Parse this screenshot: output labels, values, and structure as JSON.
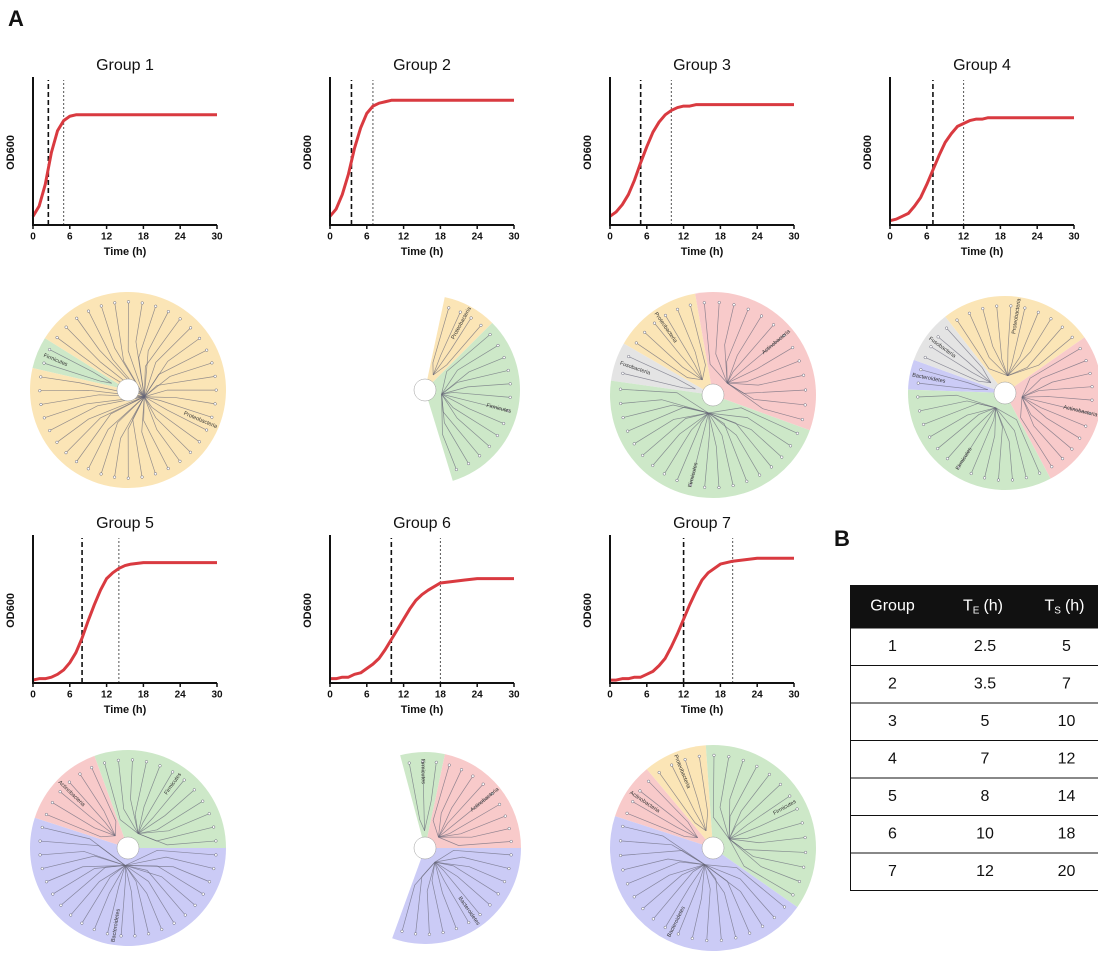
{
  "panel_labels": [
    "A",
    "B"
  ],
  "chart_data": [
    {
      "type": "line",
      "title": "Group 1",
      "y_label": "OD600",
      "x_label": "Time (h)",
      "xlim": [
        0,
        30
      ],
      "xticks": [
        0,
        6,
        12,
        18,
        24,
        30
      ],
      "ylim": [
        0,
        1
      ],
      "x": [
        0,
        1,
        2,
        3,
        4,
        5,
        6,
        7,
        8,
        9,
        10,
        11,
        12,
        13,
        14,
        15,
        16,
        18,
        20,
        22,
        24,
        26,
        28,
        30
      ],
      "series": [
        {
          "color": "#d93a40",
          "values": [
            0.06,
            0.13,
            0.28,
            0.5,
            0.65,
            0.72,
            0.75,
            0.76,
            0.76,
            0.76,
            0.76,
            0.76,
            0.76,
            0.76,
            0.76,
            0.76,
            0.76,
            0.76,
            0.76,
            0.76,
            0.76,
            0.76,
            0.76,
            0.76
          ]
        }
      ]
    },
    {
      "type": "line",
      "title": "Group 2",
      "y_label": "OD600",
      "x_label": "Time (h)",
      "xlim": [
        0,
        30
      ],
      "xticks": [
        0,
        6,
        12,
        18,
        24,
        30
      ],
      "ylim": [
        0,
        1
      ],
      "x": [
        0,
        1,
        2,
        3,
        4,
        5,
        6,
        7,
        8,
        9,
        10,
        11,
        12,
        13,
        14,
        15,
        16,
        18,
        20,
        22,
        24,
        26,
        28,
        30
      ],
      "series": [
        {
          "color": "#d93a40",
          "values": [
            0.06,
            0.11,
            0.21,
            0.35,
            0.53,
            0.67,
            0.77,
            0.82,
            0.84,
            0.85,
            0.86,
            0.86,
            0.86,
            0.86,
            0.86,
            0.86,
            0.86,
            0.86,
            0.86,
            0.86,
            0.86,
            0.86,
            0.86,
            0.86
          ]
        }
      ]
    },
    {
      "type": "line",
      "title": "Group 3",
      "y_label": "OD600",
      "x_label": "Time (h)",
      "xlim": [
        0,
        30
      ],
      "xticks": [
        0,
        6,
        12,
        18,
        24,
        30
      ],
      "ylim": [
        0,
        1
      ],
      "x": [
        0,
        1,
        2,
        3,
        4,
        5,
        6,
        7,
        8,
        9,
        10,
        11,
        12,
        13,
        14,
        15,
        16,
        18,
        20,
        22,
        24,
        26,
        28,
        30
      ],
      "series": [
        {
          "color": "#d93a40",
          "values": [
            0.06,
            0.09,
            0.14,
            0.21,
            0.31,
            0.43,
            0.54,
            0.64,
            0.71,
            0.76,
            0.79,
            0.81,
            0.82,
            0.82,
            0.83,
            0.83,
            0.83,
            0.83,
            0.83,
            0.83,
            0.83,
            0.83,
            0.83,
            0.83
          ]
        }
      ]
    },
    {
      "type": "line",
      "title": "Group 4",
      "y_label": "OD600",
      "x_label": "Time (h)",
      "xlim": [
        0,
        30
      ],
      "xticks": [
        0,
        6,
        12,
        18,
        24,
        30
      ],
      "ylim": [
        0,
        1
      ],
      "x": [
        0,
        1,
        2,
        3,
        4,
        5,
        6,
        7,
        8,
        9,
        10,
        11,
        12,
        13,
        14,
        15,
        16,
        18,
        20,
        22,
        24,
        26,
        28,
        30
      ],
      "series": [
        {
          "color": "#d93a40",
          "values": [
            0.03,
            0.04,
            0.06,
            0.08,
            0.13,
            0.19,
            0.28,
            0.38,
            0.48,
            0.57,
            0.63,
            0.68,
            0.7,
            0.72,
            0.73,
            0.73,
            0.74,
            0.74,
            0.74,
            0.74,
            0.74,
            0.74,
            0.74,
            0.74
          ]
        }
      ]
    },
    {
      "type": "line",
      "title": "Group 5",
      "y_label": "OD600",
      "x_label": "Time (h)",
      "xlim": [
        0,
        30
      ],
      "xticks": [
        0,
        6,
        12,
        18,
        24,
        30
      ],
      "ylim": [
        0,
        1
      ],
      "x": [
        0,
        1,
        2,
        3,
        4,
        5,
        6,
        7,
        8,
        9,
        10,
        11,
        12,
        13,
        14,
        15,
        16,
        18,
        20,
        22,
        24,
        26,
        28,
        30
      ],
      "series": [
        {
          "color": "#d93a40",
          "values": [
            0.02,
            0.03,
            0.03,
            0.04,
            0.06,
            0.09,
            0.14,
            0.21,
            0.31,
            0.43,
            0.54,
            0.64,
            0.72,
            0.76,
            0.79,
            0.81,
            0.82,
            0.83,
            0.83,
            0.83,
            0.83,
            0.83,
            0.83,
            0.83
          ]
        }
      ]
    },
    {
      "type": "line",
      "title": "Group 6",
      "y_label": "OD600",
      "x_label": "Time (h)",
      "xlim": [
        0,
        30
      ],
      "xticks": [
        0,
        6,
        12,
        18,
        24,
        30
      ],
      "ylim": [
        0,
        1
      ],
      "x": [
        0,
        1,
        2,
        3,
        4,
        5,
        6,
        7,
        8,
        9,
        10,
        11,
        12,
        13,
        14,
        15,
        16,
        18,
        20,
        22,
        24,
        26,
        28,
        30
      ],
      "series": [
        {
          "color": "#d93a40",
          "values": [
            0.03,
            0.03,
            0.04,
            0.04,
            0.06,
            0.07,
            0.1,
            0.13,
            0.17,
            0.23,
            0.3,
            0.37,
            0.44,
            0.51,
            0.57,
            0.61,
            0.64,
            0.69,
            0.7,
            0.71,
            0.72,
            0.72,
            0.72,
            0.72
          ]
        }
      ]
    },
    {
      "type": "line",
      "title": "Group 7",
      "y_label": "OD600",
      "x_label": "Time (h)",
      "xlim": [
        0,
        30
      ],
      "xticks": [
        0,
        6,
        12,
        18,
        24,
        30
      ],
      "ylim": [
        0,
        1
      ],
      "x": [
        0,
        1,
        2,
        3,
        4,
        5,
        6,
        7,
        8,
        9,
        10,
        11,
        12,
        13,
        14,
        15,
        16,
        18,
        20,
        22,
        24,
        26,
        28,
        30
      ],
      "series": [
        {
          "color": "#d93a40",
          "values": [
            0.02,
            0.02,
            0.03,
            0.03,
            0.04,
            0.04,
            0.06,
            0.08,
            0.12,
            0.17,
            0.25,
            0.34,
            0.44,
            0.54,
            0.63,
            0.71,
            0.76,
            0.82,
            0.84,
            0.85,
            0.86,
            0.86,
            0.86,
            0.86
          ]
        }
      ]
    }
  ],
  "trees": [
    {
      "clades": [
        {
          "label": "Firmicutes",
          "color": "#cde8c8"
        },
        {
          "label": "Proteobacteria",
          "color": "#fbe5b6"
        }
      ]
    },
    {
      "clades": [
        {
          "label": "Proteobacteria",
          "color": "#fbe5b6"
        },
        {
          "label": "Firmicutes",
          "color": "#cde8c8"
        }
      ]
    },
    {
      "clades": [
        {
          "label": "Fusobacteria",
          "color": "#e4e4e4"
        },
        {
          "label": "Proteobacteria",
          "color": "#fbe5b6"
        },
        {
          "label": "Actinobacteria",
          "color": "#f8caca"
        },
        {
          "label": "Firmicutes",
          "color": "#cde8c8"
        }
      ]
    },
    {
      "clades": [
        {
          "label": "Bacteroidetes",
          "color": "#cbcbf6"
        },
        {
          "label": "Fusobacteria",
          "color": "#e4e4e4"
        },
        {
          "label": "Proteobacteria",
          "color": "#fbe5b6"
        },
        {
          "label": "Actinobacteria",
          "color": "#f8caca"
        },
        {
          "label": "Firmicutes",
          "color": "#cde8c8"
        }
      ]
    },
    {
      "clades": [
        {
          "label": "Bacteroidetes",
          "color": "#cbcbf6"
        },
        {
          "label": "Actinobacteria",
          "color": "#f8caca"
        },
        {
          "label": "Firmicutes",
          "color": "#cde8c8"
        }
      ]
    },
    {
      "clades": [
        {
          "label": "Firmicutes",
          "color": "#cde8c8"
        },
        {
          "label": "Actinobacteria",
          "color": "#f8caca"
        },
        {
          "label": "Bacteroidetes",
          "color": "#cbcbf6"
        }
      ]
    },
    {
      "clades": [
        {
          "label": "Actinobacteria",
          "color": "#f8caca"
        },
        {
          "label": "Proteobacteria",
          "color": "#fbe5b6"
        },
        {
          "label": "Firmicutes",
          "color": "#cde8c8"
        },
        {
          "label": "Bacteroidetes",
          "color": "#cbcbf6"
        }
      ]
    }
  ],
  "table": {
    "header": [
      "Group",
      {
        "symbol": "T",
        "sub": "E",
        "unit": "(h)"
      },
      {
        "symbol": "T",
        "sub": "S",
        "unit": "(h)"
      }
    ],
    "rows": [
      [
        1,
        2.5,
        5
      ],
      [
        2,
        3.5,
        7
      ],
      [
        3,
        5,
        10
      ],
      [
        4,
        7,
        12
      ],
      [
        5,
        8,
        14
      ],
      [
        6,
        10,
        18
      ],
      [
        7,
        12,
        20
      ]
    ]
  }
}
